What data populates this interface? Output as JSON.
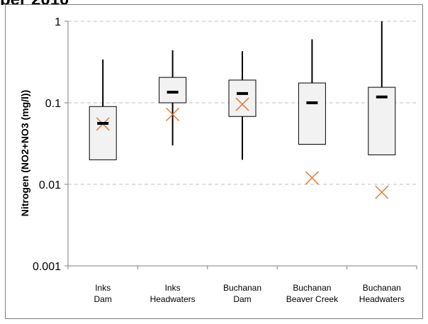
{
  "header": {
    "title_fragment": "ber 2010"
  },
  "chart_data": {
    "type": "box",
    "ylabel": "Nitrogen (NO2+NO3 (mg/l))",
    "xlabel": "",
    "yscale": "log",
    "ylim": [
      0.001,
      1
    ],
    "yticks": [
      1,
      0.1,
      0.01,
      0.001
    ],
    "ytick_labels": [
      "1",
      "0.1",
      "0.01",
      "0.001"
    ],
    "grid": "horizontal dashed",
    "categories": [
      [
        "Inks",
        "Dam"
      ],
      [
        "Inks",
        "Headwaters"
      ],
      [
        "Buchanan",
        "Dam"
      ],
      [
        "Buchanan",
        "Beaver Creek"
      ],
      [
        "Buchanan",
        "Headwaters"
      ]
    ],
    "boxes": [
      {
        "min": 0.02,
        "q1": 0.02,
        "median": 0.056,
        "q3": 0.09,
        "max": 0.34,
        "marker": 0.055
      },
      {
        "min": 0.03,
        "q1": 0.1,
        "median": 0.135,
        "q3": 0.205,
        "max": 0.44,
        "marker": 0.072
      },
      {
        "min": 0.02,
        "q1": 0.068,
        "median": 0.13,
        "q3": 0.19,
        "max": 0.43,
        "marker": 0.096
      },
      {
        "min": 0.031,
        "q1": 0.031,
        "median": 0.1,
        "q3": 0.175,
        "max": 0.6,
        "marker": 0.012
      },
      {
        "min": 0.023,
        "q1": 0.023,
        "median": 0.118,
        "q3": 0.155,
        "max": 1.0,
        "marker": 0.008
      }
    ],
    "colors": {
      "box_fill": "#f2f2f2",
      "box_stroke": "#000000",
      "marker": "#e07b39",
      "grid": "#bfbfbf"
    }
  }
}
